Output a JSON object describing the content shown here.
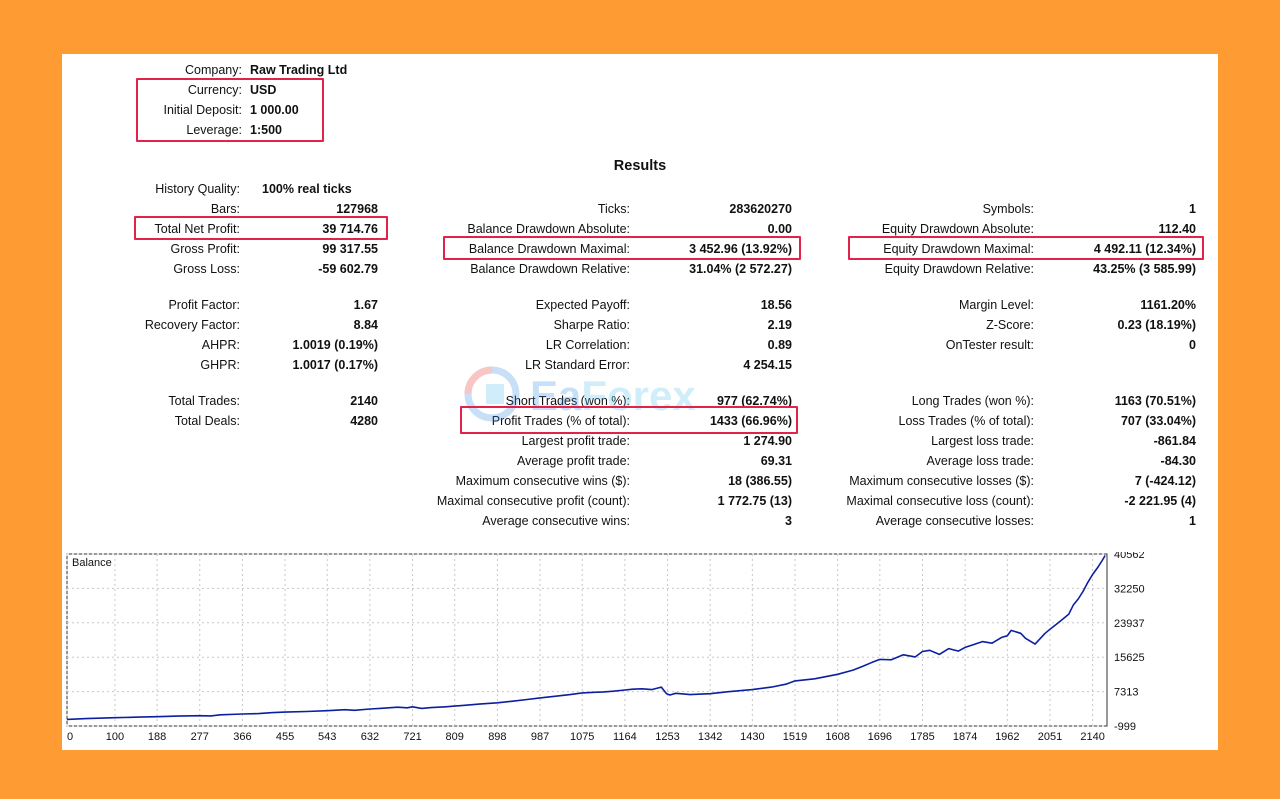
{
  "header": {
    "company_label": "Company:",
    "company": "Raw Trading Ltd",
    "currency_label": "Currency:",
    "currency": "USD",
    "deposit_label": "Initial Deposit:",
    "deposit": "1 000.00",
    "leverage_label": "Leverage:",
    "leverage": "1:500"
  },
  "results_title": "Results",
  "col1": [
    {
      "label": "History Quality:",
      "value": "100% real ticks"
    },
    {
      "label": "Bars:",
      "value": "127968"
    },
    {
      "label": "Total Net Profit:",
      "value": "39 714.76"
    },
    {
      "label": "Gross Profit:",
      "value": "99 317.55"
    },
    {
      "label": "Gross Loss:",
      "value": "-59 602.79"
    },
    {
      "label": "Profit Factor:",
      "value": "1.67"
    },
    {
      "label": "Recovery Factor:",
      "value": "8.84"
    },
    {
      "label": "AHPR:",
      "value": "1.0019 (0.19%)"
    },
    {
      "label": "GHPR:",
      "value": "1.0017 (0.17%)"
    },
    {
      "label": "Total Trades:",
      "value": "2140"
    },
    {
      "label": "Total Deals:",
      "value": "4280"
    }
  ],
  "col2": [
    {
      "label": "Ticks:",
      "value": "283620270"
    },
    {
      "label": "Balance Drawdown Absolute:",
      "value": "0.00"
    },
    {
      "label": "Balance Drawdown Maximal:",
      "value": "3 452.96 (13.92%)"
    },
    {
      "label": "Balance Drawdown Relative:",
      "value": "31.04% (2 572.27)"
    },
    {
      "label": "Expected Payoff:",
      "value": "18.56"
    },
    {
      "label": "Sharpe Ratio:",
      "value": "2.19"
    },
    {
      "label": "LR Correlation:",
      "value": "0.89"
    },
    {
      "label": "LR Standard Error:",
      "value": "4 254.15"
    },
    {
      "label": "Short Trades (won %):",
      "value": "977 (62.74%)"
    },
    {
      "label": "Profit Trades (% of total):",
      "value": "1433 (66.96%)"
    },
    {
      "label": "Largest profit trade:",
      "value": "1 274.90"
    },
    {
      "label": "Average profit trade:",
      "value": "69.31"
    },
    {
      "label": "Maximum consecutive wins ($):",
      "value": "18 (386.55)"
    },
    {
      "label": "Maximal consecutive profit (count):",
      "value": "1 772.75 (13)"
    },
    {
      "label": "Average consecutive wins:",
      "value": "3"
    }
  ],
  "col3": [
    {
      "label": "Symbols:",
      "value": "1"
    },
    {
      "label": "Equity Drawdown Absolute:",
      "value": "112.40"
    },
    {
      "label": "Equity Drawdown Maximal:",
      "value": "4 492.11 (12.34%)"
    },
    {
      "label": "Equity Drawdown Relative:",
      "value": "43.25% (3 585.99)"
    },
    {
      "label": "Margin Level:",
      "value": "1161.20%"
    },
    {
      "label": "Z-Score:",
      "value": "0.23 (18.19%)"
    },
    {
      "label": "OnTester result:",
      "value": "0"
    },
    {
      "label": "Long Trades (won %):",
      "value": "1163 (70.51%)"
    },
    {
      "label": "Loss Trades (% of total):",
      "value": "707 (33.04%)"
    },
    {
      "label": "Largest loss trade:",
      "value": "-861.84"
    },
    {
      "label": "Average loss trade:",
      "value": "-84.30"
    },
    {
      "label": "Maximum consecutive losses ($):",
      "value": "7 (-424.12)"
    },
    {
      "label": "Maximal consecutive loss (count):",
      "value": "-2 221.95 (4)"
    },
    {
      "label": "Average consecutive losses:",
      "value": "1"
    }
  ],
  "watermark": {
    "brand": "EaForex",
    "colors": {
      "ea": "#3A8EE6",
      "forex": "#58C3F0",
      "logo_red": "#E8352F"
    }
  },
  "colors": {
    "highlight": "#E3224A",
    "line": "#0B1FA0",
    "background": "#FF9B33"
  },
  "chart_data": {
    "type": "line",
    "title": "Balance",
    "x_ticks": [
      "0",
      "100",
      "188",
      "277",
      "366",
      "455",
      "543",
      "632",
      "721",
      "809",
      "898",
      "987",
      "1075",
      "1164",
      "1253",
      "1342",
      "1430",
      "1519",
      "1608",
      "1696",
      "1785",
      "1874",
      "1962",
      "2051",
      "2140"
    ],
    "y_ticks": [
      "-999",
      "7313",
      "15625",
      "23937",
      "32250",
      "40562"
    ],
    "xlim": [
      0,
      2170
    ],
    "ylim": [
      -999,
      40562
    ],
    "series": [
      {
        "x": [
          0,
          40,
          100,
          150,
          188,
          230,
          277,
          300,
          320,
          366,
          400,
          430,
          455,
          500,
          543,
          580,
          600,
          632,
          660,
          690,
          710,
          721,
          740,
          760,
          790,
          809,
          830,
          860,
          898,
          930,
          960,
          987,
          1020,
          1050,
          1075,
          1100,
          1120,
          1140,
          1164,
          1180,
          1200,
          1220,
          1240,
          1251,
          1258,
          1270,
          1300,
          1342,
          1380,
          1430,
          1470,
          1500,
          1519,
          1560,
          1608,
          1640,
          1660,
          1680,
          1696,
          1720,
          1745,
          1770,
          1785,
          1800,
          1820,
          1840,
          1860,
          1874,
          1890,
          1910,
          1930,
          1950,
          1962,
          1970,
          1990,
          2000,
          2020,
          2040,
          2051,
          2070,
          2090,
          2100,
          2110,
          2120,
          2130,
          2140,
          2150,
          2160,
          2166
        ],
        "y": [
          600,
          800,
          1000,
          1150,
          1250,
          1400,
          1500,
          1450,
          1700,
          1900,
          2000,
          2250,
          2350,
          2500,
          2700,
          2950,
          2800,
          3100,
          3300,
          3550,
          3400,
          3650,
          3250,
          3450,
          3650,
          3800,
          4000,
          4300,
          4600,
          5000,
          5400,
          5800,
          6200,
          6600,
          7000,
          7150,
          7250,
          7400,
          7700,
          7900,
          8000,
          7800,
          8400,
          6800,
          6500,
          6900,
          6600,
          6800,
          7300,
          7800,
          8400,
          9100,
          9900,
          10400,
          11500,
          12500,
          13400,
          14400,
          15100,
          15000,
          16200,
          15700,
          17000,
          17300,
          16300,
          17700,
          17100,
          18000,
          18600,
          19400,
          19000,
          20400,
          20800,
          22100,
          21400,
          20200,
          18800,
          21300,
          22400,
          24100,
          26000,
          28300,
          29700,
          31500,
          33700,
          35600,
          37200,
          39000,
          40200
        ]
      }
    ]
  }
}
